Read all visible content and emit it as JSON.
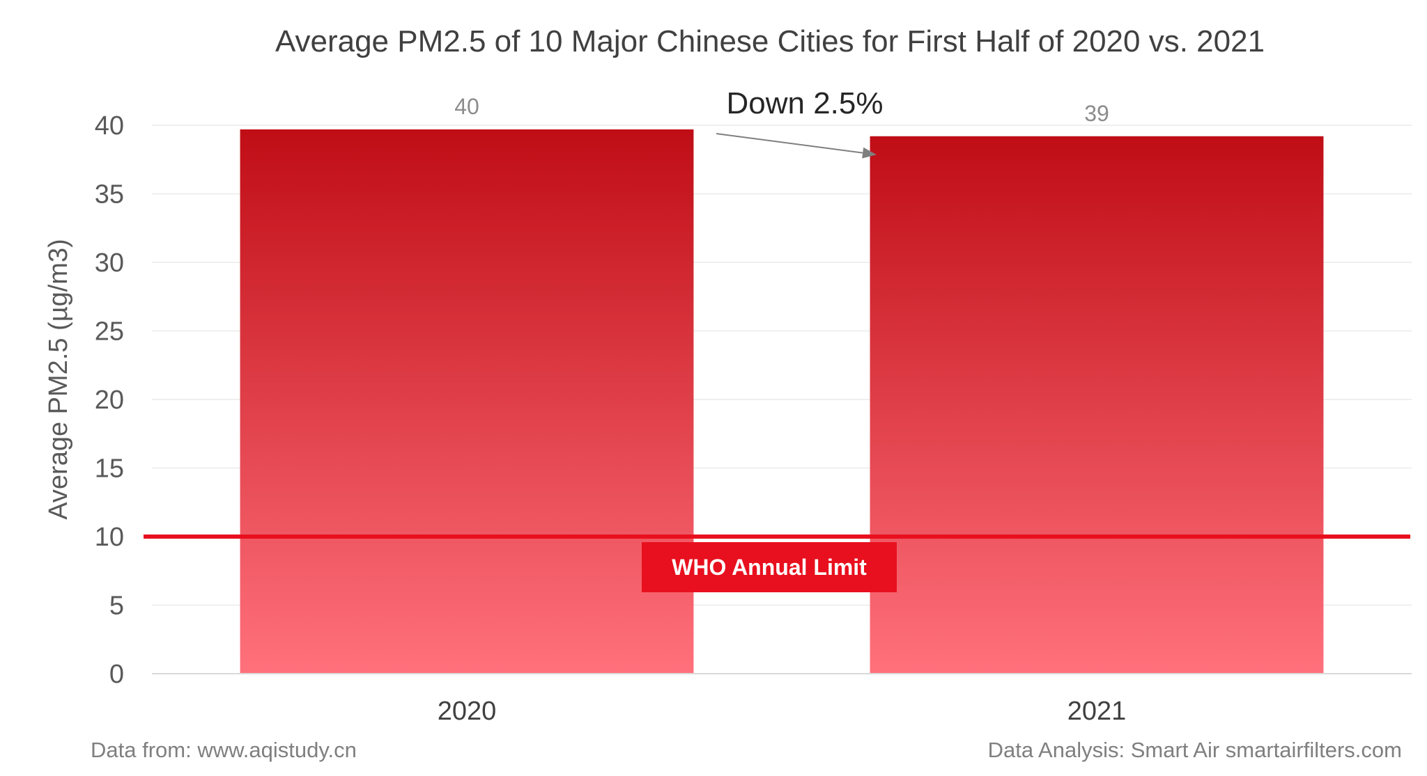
{
  "chart_data": {
    "type": "bar",
    "title": "Average PM2.5 of 10 Major Chinese Cities for First Half of 2020 vs. 2021",
    "ylabel": "Average PM2.5 (µg/m3)",
    "xlabel": "",
    "categories": [
      "2020",
      "2021"
    ],
    "values": [
      39.7,
      39.2
    ],
    "data_labels": [
      "40",
      "39"
    ],
    "ylim": [
      0,
      40
    ],
    "yticks": [
      0,
      5,
      10,
      15,
      20,
      25,
      30,
      35,
      40
    ],
    "grid": true,
    "reference_line": {
      "value": 10,
      "label": "WHO Annual Limit",
      "color": "#e8101e"
    },
    "annotation": {
      "text": "Down 2.5%"
    },
    "bar_gradient": {
      "top": "#c00d16",
      "bottom": "#ff717c"
    }
  },
  "footer": {
    "source": "Data from: www.aqistudy.cn",
    "credit": "Data Analysis: Smart Air smartairfilters.com"
  }
}
